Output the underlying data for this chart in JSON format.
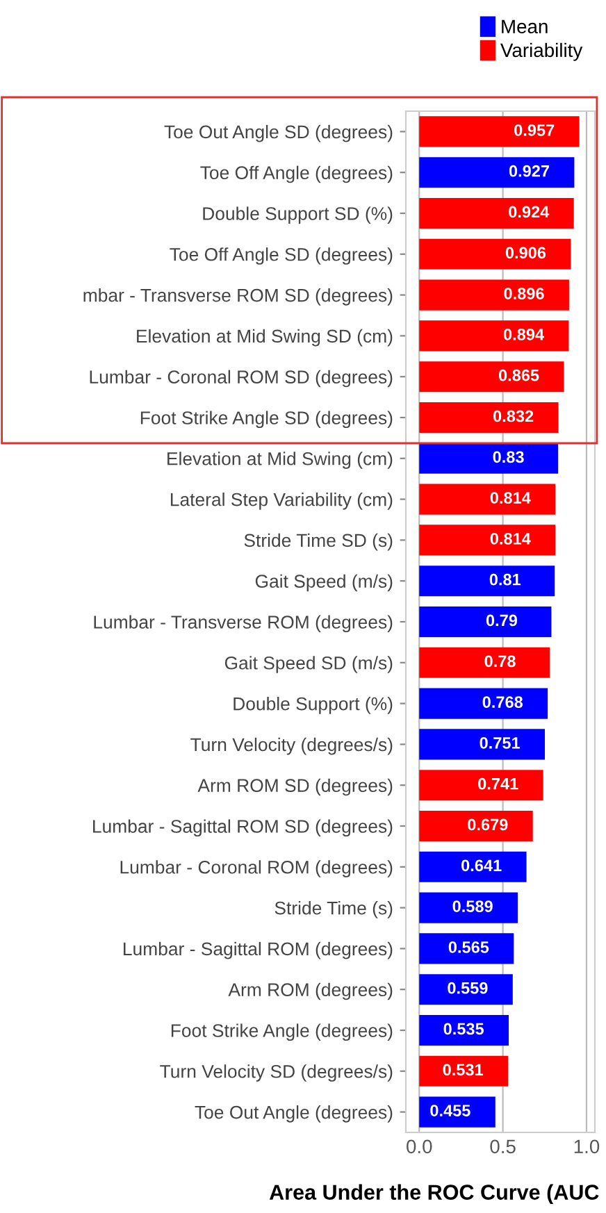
{
  "chart_data": {
    "type": "bar",
    "orientation": "horizontal",
    "xlabel": "Area Under the ROC Curve (AUC",
    "categories": [
      "Toe Out Angle SD (degrees)",
      "Toe Off Angle (degrees)",
      "Double Support SD (%)",
      "Toe Off Angle SD (degrees)",
      "mbar - Transverse ROM SD (degrees)",
      "Elevation at Mid Swing SD (cm)",
      "Lumbar - Coronal ROM SD (degrees)",
      "Foot Strike Angle SD (degrees)",
      "Elevation at Mid Swing (cm)",
      "Lateral Step Variability (cm)",
      "Stride Time SD (s)",
      "Gait Speed (m/s)",
      "Lumbar - Transverse ROM (degrees)",
      "Gait Speed SD (m/s)",
      "Double Support (%)",
      "Turn Velocity (degrees/s)",
      "Arm ROM SD (degrees)",
      "Lumbar - Sagittal ROM SD (degrees)",
      "Lumbar - Coronal ROM (degrees)",
      "Stride Time (s)",
      "Lumbar - Sagittal ROM (degrees)",
      "Arm ROM (degrees)",
      "Foot Strike Angle (degrees)",
      "Turn Velocity SD (degrees/s)",
      "Toe Out Angle (degrees)"
    ],
    "series": [
      {
        "name": "Mean",
        "color": "#0000ff",
        "values": [
          null,
          0.927,
          null,
          null,
          null,
          null,
          null,
          null,
          0.83,
          null,
          null,
          0.81,
          0.79,
          null,
          0.768,
          0.751,
          null,
          null,
          0.641,
          0.589,
          0.565,
          0.559,
          0.535,
          null,
          0.455
        ]
      },
      {
        "name": "Variability",
        "color": "#ff0000",
        "values": [
          0.957,
          null,
          0.924,
          0.906,
          0.896,
          0.894,
          0.865,
          0.832,
          null,
          0.814,
          0.814,
          null,
          null,
          0.78,
          null,
          null,
          0.741,
          0.679,
          null,
          null,
          null,
          null,
          null,
          0.531,
          null
        ]
      }
    ],
    "xlim": [
      -0.08,
      1.05
    ],
    "xticks": [
      {
        "value": 0,
        "label": "0.0"
      },
      0.5,
      {
        "value": 1,
        "label": "1.0"
      }
    ],
    "grid": "x",
    "legend": "top right",
    "data_labels": true
  }
}
